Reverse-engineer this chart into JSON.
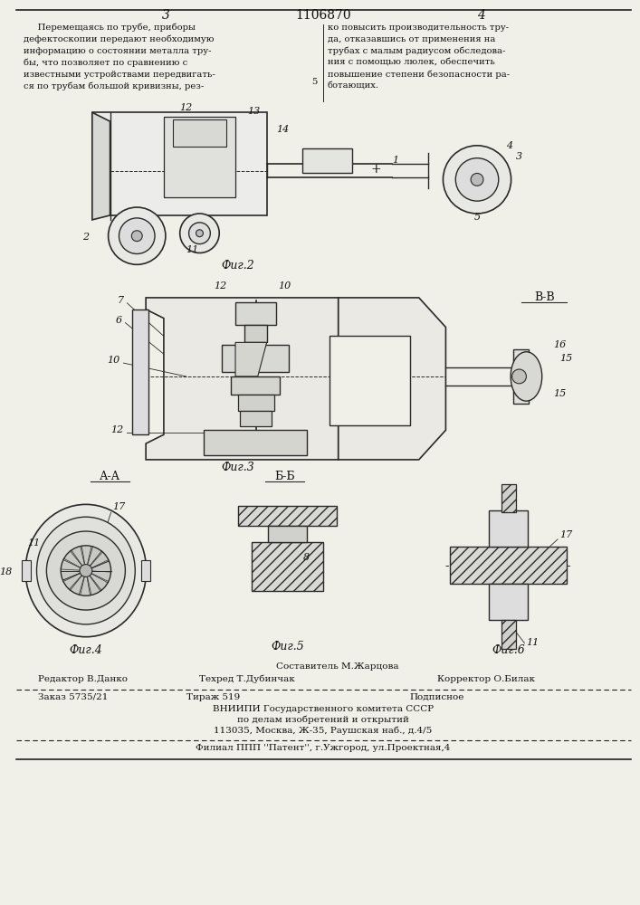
{
  "page_width": 7.07,
  "page_height": 10.0,
  "bg_color": "#f0efe8",
  "header_page_left": "3",
  "header_patent": "1106870",
  "header_page_right": "4",
  "col_left_text": [
    "     Перемещаясь по трубе, приборы",
    "дефектоскопии передают необходимую",
    "информацию о состоянии металла тру-",
    "бы, что позволяет по сравнению с",
    "известными устройствами передвигать-",
    "ся по трубам большой кривизны, рез-"
  ],
  "col_left_text_5": "5",
  "col_right_text": [
    "ко повысить производительность тру-",
    "да, отказавшись от применения на",
    "трубах с малым радиусом обследова-",
    "ния с помощью люлек, обеспечить",
    "повышение степени безопасности ра-",
    "ботающих."
  ],
  "fig2_label": "Фиг.2",
  "fig3_label": "Фиг.3",
  "fig4_label": "Фиг.4",
  "fig5_label": "Фиг.5",
  "fig6_label": "Фиг.6",
  "aa_label": "А-А",
  "bb_label": "Б-Б",
  "bv_label": "В-В",
  "line_color": "#222222",
  "text_color": "#111111",
  "drawing_color": "#2a2a2a"
}
